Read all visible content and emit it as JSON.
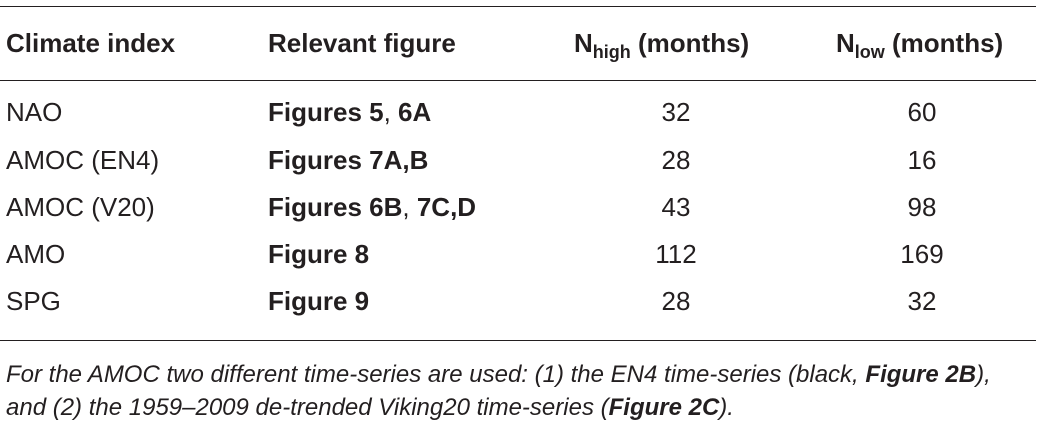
{
  "headers": {
    "col1": "Climate index",
    "col2": "Relevant figure",
    "col3_main": "N",
    "col3_sub": "high",
    "col3_rest": " (months)",
    "col4_main": "N",
    "col4_sub": "low",
    "col4_rest": " (months)"
  },
  "rows": [
    {
      "index": "NAO",
      "fig_a": "Figures 5",
      "sep": ", ",
      "fig_b": "6A",
      "n_high": "32",
      "n_low": "60"
    },
    {
      "index": "AMOC (EN4)",
      "fig_a": "Figures 7A,B",
      "sep": "",
      "fig_b": "",
      "n_high": "28",
      "n_low": "16"
    },
    {
      "index": "AMOC (V20)",
      "fig_a": "Figures 6B",
      "sep": ", ",
      "fig_b": "7C,D",
      "n_high": "43",
      "n_low": "98"
    },
    {
      "index": "AMO",
      "fig_a": "Figure 8",
      "sep": "",
      "fig_b": "",
      "n_high": "112",
      "n_low": "169"
    },
    {
      "index": "SPG",
      "fig_a": "Figure 9",
      "sep": "",
      "fig_b": "",
      "n_high": "28",
      "n_low": "32"
    }
  ],
  "footnote": {
    "part1": "For the AMOC two different time-series are used: (1) the EN4 time-series (black, ",
    "ref1": "Figure 2B",
    "part2": "), and (2) the 1959–2009 de-trended Viking20 time-series (",
    "ref2": "Figure 2C",
    "part3": ")."
  }
}
